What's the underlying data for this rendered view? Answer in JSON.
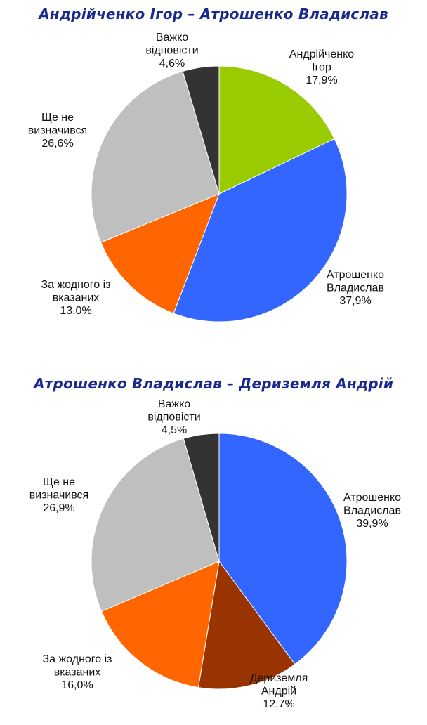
{
  "chart_data": [
    {
      "type": "pie",
      "title": "Андрійченко Ігор – Атрошенко Владислав",
      "slices": [
        {
          "name_lines": [
            "Андрійченко",
            "Ігор"
          ],
          "value": 17.9,
          "value_label": "17,9%",
          "color": "#99cc00"
        },
        {
          "name_lines": [
            "Атрошенко",
            "Владислав"
          ],
          "value": 37.9,
          "value_label": "37,9%",
          "color": "#3366ff"
        },
        {
          "name_lines": [
            "За жодного із",
            "вказаних"
          ],
          "value": 13.0,
          "value_label": "13,0%",
          "color": "#ff6600"
        },
        {
          "name_lines": [
            "Ще не",
            "визначився"
          ],
          "value": 26.6,
          "value_label": "26,6%",
          "color": "#bfbfbf"
        },
        {
          "name_lines": [
            "Важко",
            "відповісти"
          ],
          "value": 4.6,
          "value_label": "4,6%",
          "color": "#333333"
        }
      ]
    },
    {
      "type": "pie",
      "title": "Атрошенко Владислав – Дериземля Андрій",
      "slices": [
        {
          "name_lines": [
            "Атрошенко",
            "Владислав"
          ],
          "value": 39.9,
          "value_label": "39,9%",
          "color": "#3366ff"
        },
        {
          "name_lines": [
            "Дериземля",
            "Андрій"
          ],
          "value": 12.7,
          "value_label": "12,7%",
          "color": "#993300"
        },
        {
          "name_lines": [
            "За жодного із",
            "вказаних"
          ],
          "value": 16.0,
          "value_label": "16,0%",
          "color": "#ff6600"
        },
        {
          "name_lines": [
            "Ще не",
            "визначився"
          ],
          "value": 26.9,
          "value_label": "26,9%",
          "color": "#bfbfbf"
        },
        {
          "name_lines": [
            "Важко",
            "відповісти"
          ],
          "value": 4.5,
          "value_label": "4,5%",
          "color": "#333333"
        }
      ]
    }
  ]
}
